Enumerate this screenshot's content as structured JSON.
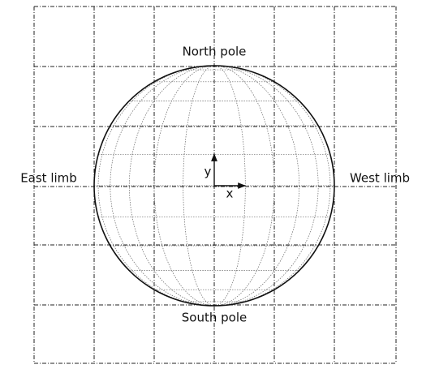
{
  "labels": {
    "north_pole": "North pole",
    "south_pole": "South pole",
    "east_limb": "East limb",
    "west_limb": "West limb",
    "axis_x": "x",
    "axis_y": "y"
  }
}
